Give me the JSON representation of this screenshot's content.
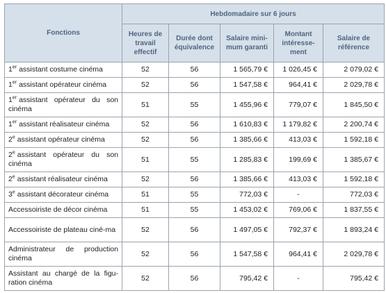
{
  "table": {
    "header": {
      "function": "Fonctions",
      "group": "Hebdomadaire sur 6 jours",
      "columns": [
        "Heures de travail effectif",
        "Durée dont équivalence",
        "Salaire mini-mum garanti",
        "Montant intéresse-ment",
        "Salaire de référence"
      ]
    },
    "rows": [
      {
        "ordinal": "1",
        "suffix": "er",
        "function": "assistant costume cinéma",
        "cells": [
          "52",
          "56",
          "1 565,79 €",
          "1 026,45 €",
          "2 079,02 €"
        ]
      },
      {
        "ordinal": "1",
        "suffix": "er",
        "function": "assistant opérateur cinéma",
        "cells": [
          "52",
          "56",
          "1 547,58 €",
          "964,41 €",
          "2 029,78 €"
        ]
      },
      {
        "ordinal": "1",
        "suffix": "er",
        "function": "assistant opérateur du son cinéma",
        "cells": [
          "51",
          "55",
          "1 455,96 €",
          "779,07 €",
          "1 845,50 €"
        ]
      },
      {
        "ordinal": "1",
        "suffix": "er",
        "function": "assistant réalisateur cinéma",
        "cells": [
          "52",
          "56",
          "1 610,83 €",
          "1 179,82 €",
          "2 200,74 €"
        ]
      },
      {
        "ordinal": "2",
        "suffix": "e",
        "function": "assistant opérateur cinéma",
        "cells": [
          "52",
          "56",
          "1 385,66 €",
          "413,03 €",
          "1 592,18 €"
        ]
      },
      {
        "ordinal": "2",
        "suffix": "e",
        "function": "assistant opérateur du son cinéma",
        "cells": [
          "51",
          "55",
          "1 285,83 €",
          "199,69 €",
          "1 385,67 €"
        ]
      },
      {
        "ordinal": "2",
        "suffix": "e",
        "function": "assistant réalisateur cinéma",
        "cells": [
          "52",
          "56",
          "1 385,66 €",
          "413,03 €",
          "1 592,18 €"
        ]
      },
      {
        "ordinal": "3",
        "suffix": "e",
        "function": "assistant décorateur cinéma",
        "cells": [
          "51",
          "55",
          "772,03 €",
          "-",
          "772,03 €"
        ]
      },
      {
        "function": "Accessoiriste de décor cinéma",
        "cells": [
          "51",
          "55",
          "1 453,02 €",
          "769,06 €",
          "1 837,55 €"
        ]
      },
      {
        "function": "Accessoiriste de plateau ciné-ma",
        "cells": [
          "52",
          "56",
          "1 497,05 €",
          "792,37 €",
          "1 893,24 €"
        ]
      },
      {
        "function": "Administrateur de production cinéma",
        "cells": [
          "52",
          "56",
          "1 547,58 €",
          "964,41 €",
          "2 029,78 €"
        ]
      },
      {
        "function": "Assistant au chargé de la figu-ration cinéma",
        "cells": [
          "52",
          "56",
          "795,42 €",
          "-",
          "795,42 €"
        ]
      }
    ]
  }
}
